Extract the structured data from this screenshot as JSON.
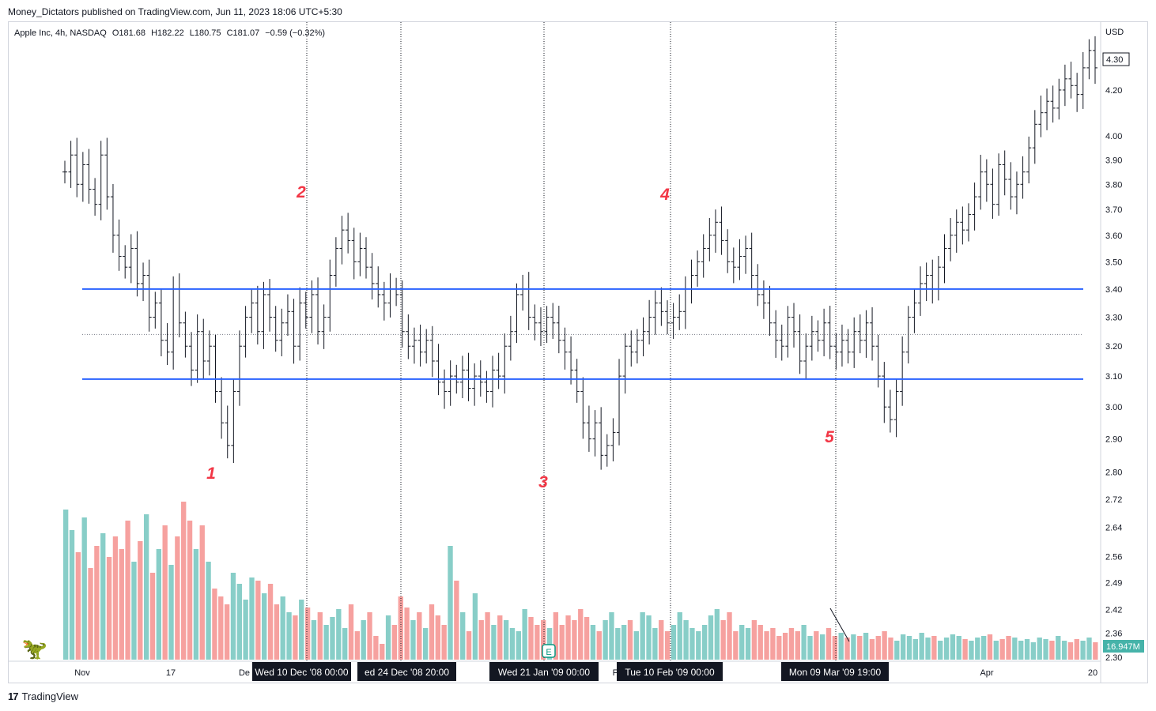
{
  "header": {
    "published": "Money_Dictators published on TradingView.com, Jun 11, 2023 18:06 UTC+5:30"
  },
  "symbol": {
    "name": "Apple Inc, 4h, NASDAQ",
    "open": "O181.68",
    "high": "H182.22",
    "low": "L180.75",
    "close": "C181.07",
    "change": "−0.59 (−0.32%)"
  },
  "currency": "USD",
  "price_label": "4.30",
  "volume_label": "16.947M",
  "footer": {
    "brand": "TradingView"
  },
  "colors": {
    "level_line": "#2962ff",
    "wave_label": "#f23645",
    "volume_up": "#26a69a",
    "volume_down": "#ef5350",
    "bar": "#131722"
  },
  "chart_data": {
    "type": "ohlc",
    "price_axis": {
      "ticks": [
        "4.20",
        "4.00",
        "3.90",
        "3.80",
        "3.70",
        "3.60",
        "3.50",
        "3.40",
        "3.30",
        "3.20",
        "3.10",
        "3.00",
        "2.90",
        "2.80",
        "2.72",
        "2.64",
        "2.56",
        "2.49",
        "2.42",
        "2.36",
        "2.30"
      ],
      "log_scale": true,
      "range": [
        2.3,
        4.45
      ]
    },
    "time_axis": {
      "ticks": [
        "Nov",
        "17",
        "De",
        "F",
        "Apr",
        "20"
      ],
      "crosshair_labels": [
        "Wed 10 Dec '08   00:00",
        "ed 24 Dec '08   20:00",
        "Wed 21 Jan '09   00:00",
        "Tue 10 Feb '09   00:00",
        "Mon 09 Mar '09   19:00"
      ]
    },
    "horizontal_levels": [
      3.4,
      3.09
    ],
    "mid_level_dotted": 3.24,
    "wave_labels": [
      {
        "label": "1",
        "price": 2.82
      },
      {
        "label": "2",
        "price": 3.71
      },
      {
        "label": "3",
        "price": 2.79
      },
      {
        "label": "4",
        "price": 3.68
      },
      {
        "label": "5",
        "price": 2.94
      }
    ],
    "earnings_marker": "E",
    "close_path": [
      3.85,
      3.92,
      3.8,
      3.88,
      3.78,
      3.72,
      3.92,
      3.75,
      3.6,
      3.52,
      3.48,
      3.55,
      3.42,
      3.45,
      3.3,
      3.35,
      3.22,
      3.18,
      3.4,
      3.28,
      3.2,
      3.12,
      3.25,
      3.15,
      3.2,
      3.05,
      2.95,
      2.88,
      3.05,
      3.2,
      3.3,
      3.35,
      3.25,
      3.38,
      3.3,
      3.22,
      3.28,
      3.32,
      3.2,
      3.35,
      3.3,
      3.38,
      3.25,
      3.3,
      3.45,
      3.55,
      3.62,
      3.58,
      3.5,
      3.55,
      3.48,
      3.42,
      3.38,
      3.35,
      3.4,
      3.38,
      3.25,
      3.2,
      3.22,
      3.18,
      3.22,
      3.15,
      3.08,
      3.05,
      3.1,
      3.08,
      3.12,
      3.06,
      3.1,
      3.08,
      3.05,
      3.12,
      3.1,
      3.2,
      3.25,
      3.38,
      3.4,
      3.3,
      3.28,
      3.25,
      3.3,
      3.28,
      3.22,
      3.18,
      3.12,
      3.05,
      2.95,
      2.9,
      2.95,
      2.85,
      2.88,
      2.92,
      3.1,
      3.2,
      3.18,
      3.22,
      3.25,
      3.3,
      3.35,
      3.32,
      3.28,
      3.3,
      3.32,
      3.4,
      3.45,
      3.5,
      3.55,
      3.6,
      3.65,
      3.58,
      3.5,
      3.48,
      3.52,
      3.55,
      3.45,
      3.38,
      3.35,
      3.28,
      3.22,
      3.2,
      3.3,
      3.25,
      3.15,
      3.2,
      3.25,
      3.22,
      3.28,
      3.2,
      3.18,
      3.22,
      3.18,
      3.25,
      3.22,
      3.28,
      3.2,
      3.1,
      3.0,
      2.96,
      3.05,
      3.18,
      3.3,
      3.35,
      3.42,
      3.45,
      3.4,
      3.48,
      3.55,
      3.6,
      3.65,
      3.62,
      3.68,
      3.75,
      3.85,
      3.8,
      3.72,
      3.88,
      3.82,
      3.75,
      3.8,
      3.85,
      3.95,
      4.05,
      4.1,
      4.15,
      4.12,
      4.2,
      4.25,
      4.22,
      4.18,
      4.3,
      4.38,
      4.3
    ],
    "volume_path": [
      0.95,
      0.82,
      0.68,
      0.9,
      0.58,
      0.72,
      0.8,
      0.65,
      0.78,
      0.7,
      0.88,
      0.62,
      0.75,
      0.92,
      0.55,
      0.7,
      0.85,
      0.6,
      0.78,
      1.0,
      0.88,
      0.7,
      0.85,
      0.62,
      0.45,
      0.4,
      0.35,
      0.55,
      0.48,
      0.38,
      0.52,
      0.5,
      0.42,
      0.48,
      0.35,
      0.4,
      0.3,
      0.28,
      0.38,
      0.33,
      0.25,
      0.3,
      0.22,
      0.27,
      0.32,
      0.2,
      0.35,
      0.18,
      0.25,
      0.3,
      0.15,
      0.1,
      0.28,
      0.22,
      0.4,
      0.33,
      0.25,
      0.3,
      0.2,
      0.35,
      0.28,
      0.22,
      0.72,
      0.5,
      0.3,
      0.18,
      0.42,
      0.25,
      0.3,
      0.22,
      0.28,
      0.25,
      0.2,
      0.18,
      0.32,
      0.27,
      0.22,
      0.25,
      0.2,
      0.3,
      0.22,
      0.28,
      0.25,
      0.32,
      0.27,
      0.22,
      0.18,
      0.25,
      0.3,
      0.2,
      0.22,
      0.25,
      0.18,
      0.3,
      0.28,
      0.2,
      0.25,
      0.18,
      0.22,
      0.3,
      0.25,
      0.2,
      0.18,
      0.22,
      0.28,
      0.32,
      0.25,
      0.3,
      0.18,
      0.22,
      0.2,
      0.25,
      0.22,
      0.18,
      0.2,
      0.15,
      0.17,
      0.2,
      0.18,
      0.22,
      0.15,
      0.18,
      0.16,
      0.2,
      0.15,
      0.17,
      0.14,
      0.16,
      0.15,
      0.17,
      0.13,
      0.15,
      0.18,
      0.14,
      0.12,
      0.16,
      0.15,
      0.13,
      0.17,
      0.14,
      0.15,
      0.12,
      0.14,
      0.16,
      0.15,
      0.13,
      0.12,
      0.14,
      0.15,
      0.16,
      0.12,
      0.13,
      0.15,
      0.14,
      0.12,
      0.13,
      0.11,
      0.14,
      0.13,
      0.12,
      0.15,
      0.12,
      0.11,
      0.13,
      0.12,
      0.14,
      0.11
    ]
  }
}
